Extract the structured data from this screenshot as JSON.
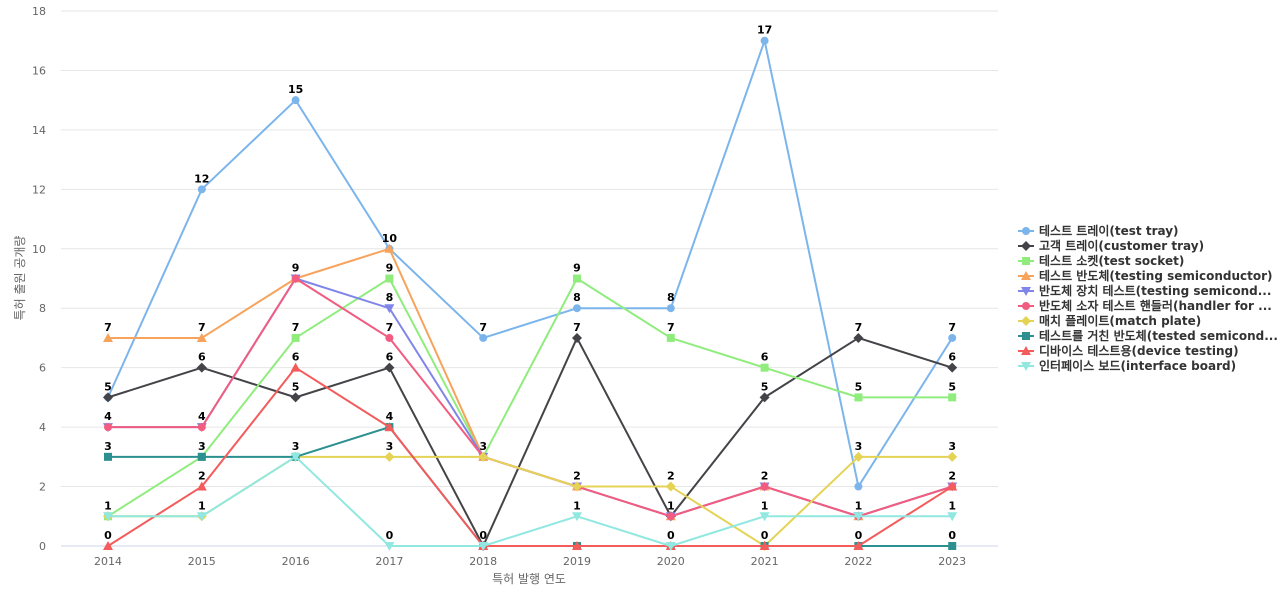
{
  "chart_data": {
    "type": "line",
    "title": "",
    "xlabel": "특허 발행 연도",
    "ylabel": "특허 출원 공개량",
    "ylim": [
      0,
      18
    ],
    "yticks": [
      0,
      2,
      4,
      6,
      8,
      10,
      12,
      14,
      16,
      18
    ],
    "categories": [
      "2014",
      "2015",
      "2016",
      "2017",
      "2018",
      "2019",
      "2020",
      "2021",
      "2022",
      "2023"
    ],
    "grid": true,
    "legend_position": "right",
    "series": [
      {
        "name": "테스트 트레이(test tray)",
        "color": "#7cb5ec",
        "marker": "circle",
        "values": [
          5,
          12,
          15,
          10,
          7,
          8,
          8,
          17,
          2,
          7
        ],
        "label_values": [
          null,
          12,
          15,
          null,
          7,
          8,
          8,
          17,
          null,
          7
        ]
      },
      {
        "name": "고객 트레이(customer tray)",
        "color": "#434348",
        "marker": "diamond",
        "values": [
          5,
          6,
          5,
          6,
          0,
          7,
          1,
          5,
          7,
          6
        ],
        "label_values": [
          5,
          6,
          5,
          6,
          null,
          7,
          null,
          5,
          7,
          6
        ]
      },
      {
        "name": "테스트 소켓(test socket)",
        "color": "#90ed7d",
        "marker": "square",
        "values": [
          1,
          3,
          7,
          9,
          3,
          9,
          7,
          6,
          5,
          5
        ],
        "label_values": [
          null,
          3,
          7,
          9,
          null,
          9,
          7,
          6,
          5,
          5
        ]
      },
      {
        "name": "테스트 반도체(testing semiconductor)",
        "color": "#f7a35c",
        "marker": "triangle",
        "values": [
          7,
          7,
          9,
          10,
          3,
          2,
          1,
          2,
          1,
          2
        ],
        "label_values": [
          7,
          7,
          null,
          10,
          null,
          null,
          null,
          null,
          null,
          null
        ]
      },
      {
        "name": "반도체 장치 테스트(testing semicond...",
        "color": "#8085e9",
        "marker": "triangle-down",
        "values": [
          4,
          4,
          9,
          8,
          3,
          2,
          1,
          2,
          1,
          2
        ],
        "label_values": [
          null,
          null,
          null,
          8,
          null,
          null,
          null,
          null,
          null,
          null
        ]
      },
      {
        "name": "반도체 소자 테스트 핸들러(handler for ...",
        "color": "#f15c80",
        "marker": "circle",
        "values": [
          4,
          4,
          9,
          7,
          3,
          2,
          1,
          2,
          1,
          2
        ],
        "label_values": [
          4,
          4,
          9,
          7,
          3,
          2,
          1,
          2,
          null,
          2
        ]
      },
      {
        "name": "매치 플레이트(match plate)",
        "color": "#e4d354",
        "marker": "diamond",
        "values": [
          1,
          1,
          3,
          3,
          3,
          2,
          2,
          0,
          3,
          3
        ],
        "label_values": [
          null,
          null,
          null,
          3,
          null,
          null,
          2,
          null,
          3,
          3
        ]
      },
      {
        "name": "테스트를 거친 반도체(tested semicond...",
        "color": "#2b908f",
        "marker": "square",
        "values": [
          3,
          3,
          3,
          4,
          0,
          0,
          0,
          0,
          0,
          0
        ],
        "label_values": [
          3,
          null,
          3,
          4,
          null,
          null,
          null,
          null,
          null,
          0
        ]
      },
      {
        "name": "디바이스 테스트용(device testing)",
        "color": "#f45b5b",
        "marker": "triangle",
        "values": [
          0,
          2,
          6,
          4,
          0,
          0,
          0,
          0,
          0,
          2
        ],
        "label_values": [
          0,
          2,
          6,
          null,
          null,
          null,
          null,
          0,
          0,
          null
        ]
      },
      {
        "name": "인터페이스 보드(interface board)",
        "color": "#91e8e1",
        "marker": "triangle-down",
        "values": [
          1,
          1,
          3,
          0,
          0,
          1,
          0,
          1,
          1,
          1
        ],
        "label_values": [
          1,
          1,
          null,
          0,
          0,
          1,
          0,
          1,
          1,
          1
        ]
      }
    ]
  }
}
